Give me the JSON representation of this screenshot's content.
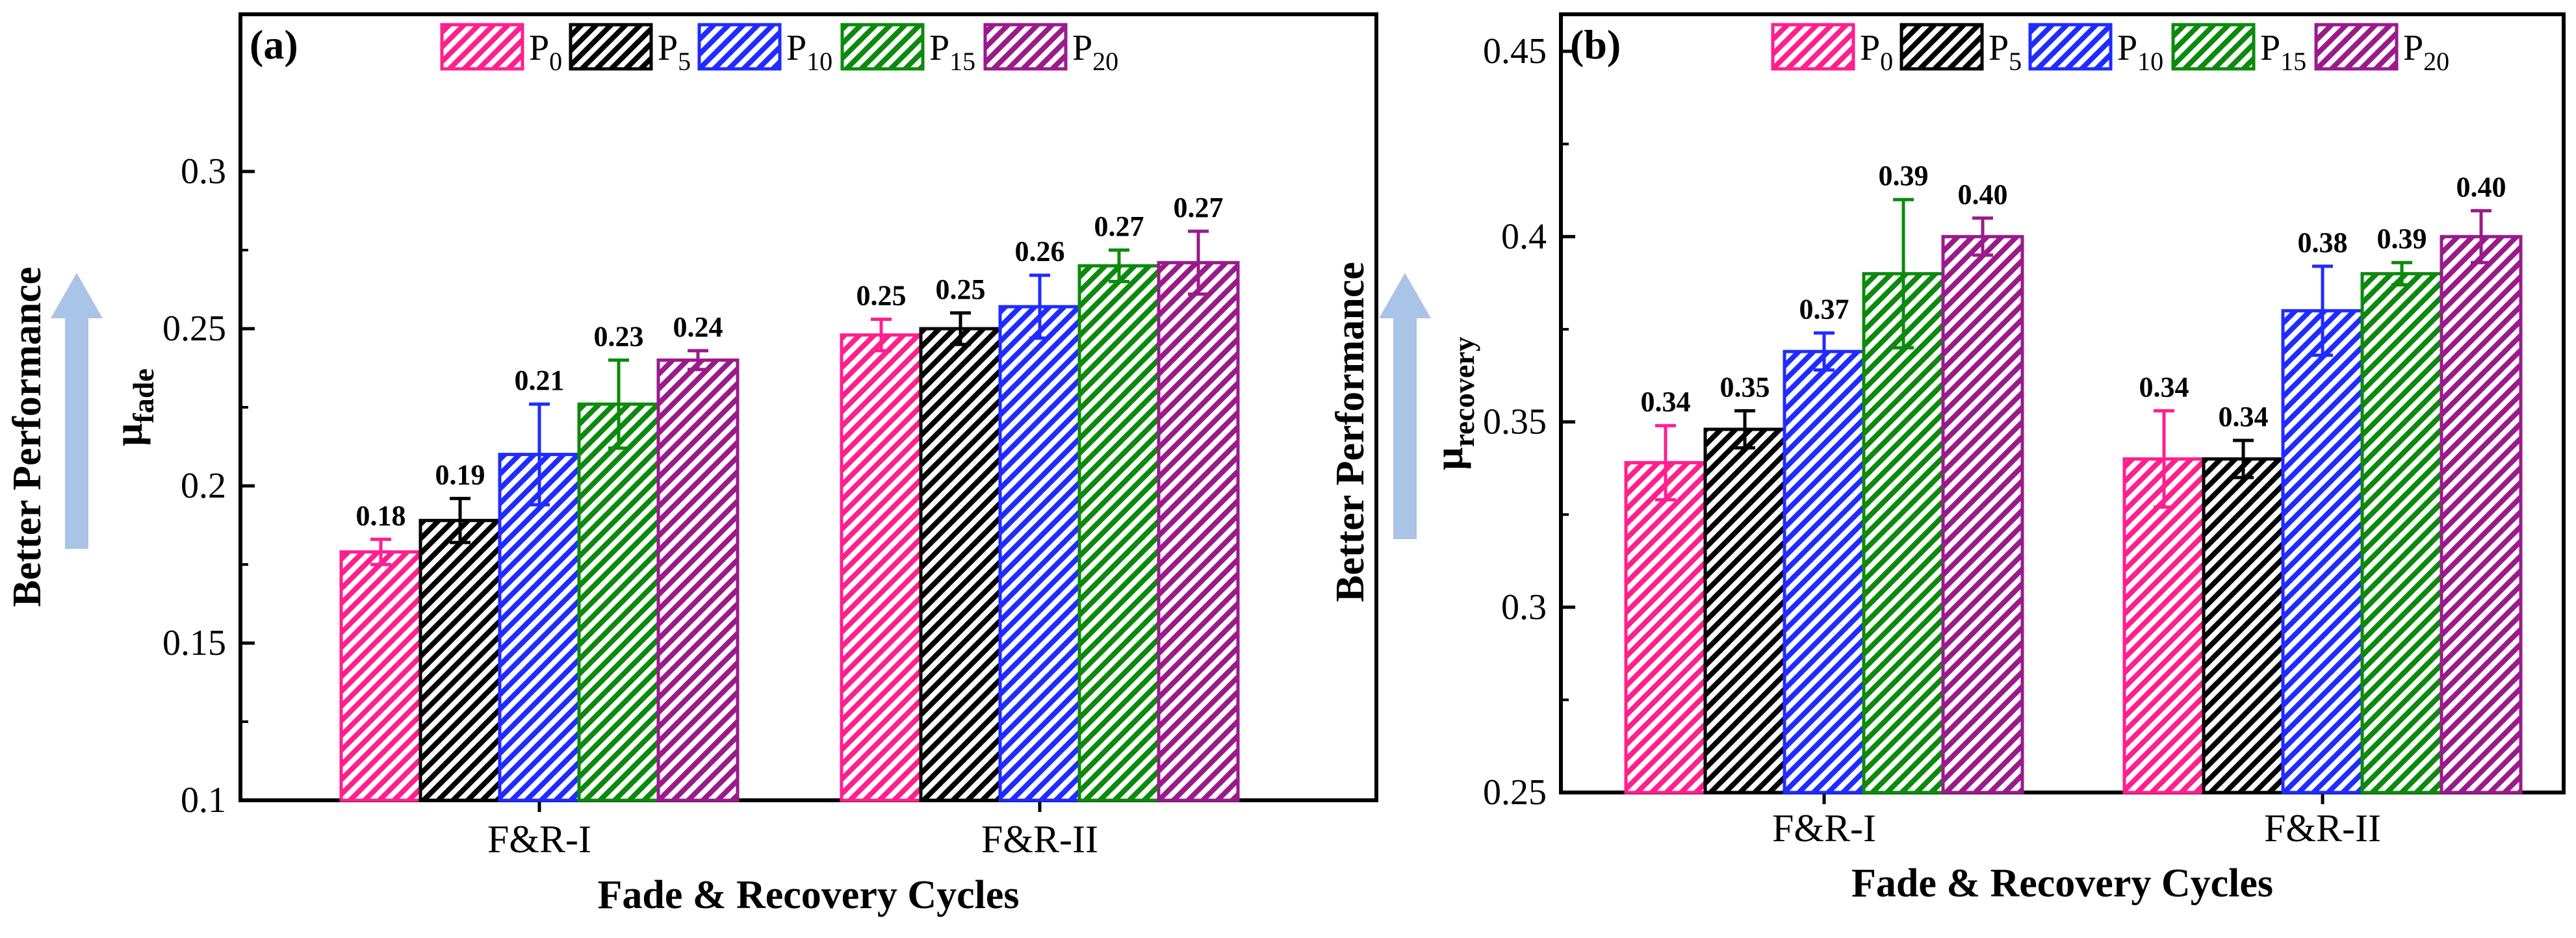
{
  "legend": [
    {
      "key": "P0",
      "base": "P",
      "sub": "0",
      "color": "#ff1f8f"
    },
    {
      "key": "P5",
      "base": "P",
      "sub": "5",
      "color": "#000000"
    },
    {
      "key": "P10",
      "base": "P",
      "sub": "10",
      "color": "#1f2cff"
    },
    {
      "key": "P15",
      "base": "P",
      "sub": "15",
      "color": "#0b8a0b"
    },
    {
      "key": "P20",
      "base": "P",
      "sub": "20",
      "color": "#9a1a8c"
    }
  ],
  "side_note": "Better Performance",
  "arrow_color": "#a9c4e6",
  "chart_data": [
    {
      "type": "bar",
      "panel_label": "(a)",
      "categories": [
        "F&R-I",
        "F&R-II"
      ],
      "xlabel": "Fade & Recovery Cycles",
      "ylabel": {
        "base": "μ",
        "sub": "fade"
      },
      "ylim": [
        0.1,
        0.35
      ],
      "yticks": [
        "0.1",
        "0.15",
        "0.2",
        "0.25",
        "0.3"
      ],
      "grid": false,
      "legend_position": "top",
      "series": [
        {
          "name": "P0",
          "values": [
            0.179,
            0.248
          ],
          "errors": [
            0.004,
            0.005
          ],
          "labels": [
            "0.18",
            "0.25"
          ]
        },
        {
          "name": "P5",
          "values": [
            0.189,
            0.25
          ],
          "errors": [
            0.007,
            0.005
          ],
          "labels": [
            "0.19",
            "0.25"
          ]
        },
        {
          "name": "P10",
          "values": [
            0.21,
            0.257
          ],
          "errors": [
            0.016,
            0.01
          ],
          "labels": [
            "0.21",
            "0.26"
          ]
        },
        {
          "name": "P15",
          "values": [
            0.226,
            0.27
          ],
          "errors": [
            0.014,
            0.005
          ],
          "labels": [
            "0.23",
            "0.27"
          ]
        },
        {
          "name": "P20",
          "values": [
            0.24,
            0.271
          ],
          "errors": [
            0.003,
            0.01
          ],
          "labels": [
            "0.24",
            "0.27"
          ]
        }
      ]
    },
    {
      "type": "bar",
      "panel_label": "(b)",
      "categories": [
        "F&R-I",
        "F&R-II"
      ],
      "xlabel": "Fade & Recovery Cycles",
      "ylabel": {
        "base": "μ",
        "sub": "recovery"
      },
      "ylim": [
        0.25,
        0.46
      ],
      "yticks": [
        "0.25",
        "0.3",
        "0.35",
        "0.4",
        "0.45"
      ],
      "grid": false,
      "legend_position": "top",
      "series": [
        {
          "name": "P0",
          "values": [
            0.339,
            0.34
          ],
          "errors": [
            0.01,
            0.013
          ],
          "labels": [
            "0.34",
            "0.34"
          ]
        },
        {
          "name": "P5",
          "values": [
            0.348,
            0.34
          ],
          "errors": [
            0.005,
            0.005
          ],
          "labels": [
            "0.35",
            "0.34"
          ]
        },
        {
          "name": "P10",
          "values": [
            0.369,
            0.38
          ],
          "errors": [
            0.005,
            0.012
          ],
          "labels": [
            "0.37",
            "0.38"
          ]
        },
        {
          "name": "P15",
          "values": [
            0.39,
            0.39
          ],
          "errors": [
            0.02,
            0.003
          ],
          "labels": [
            "0.39",
            "0.39"
          ]
        },
        {
          "name": "P20",
          "values": [
            0.4,
            0.4
          ],
          "errors": [
            0.005,
            0.007
          ],
          "labels": [
            "0.40",
            "0.40"
          ]
        }
      ]
    }
  ]
}
